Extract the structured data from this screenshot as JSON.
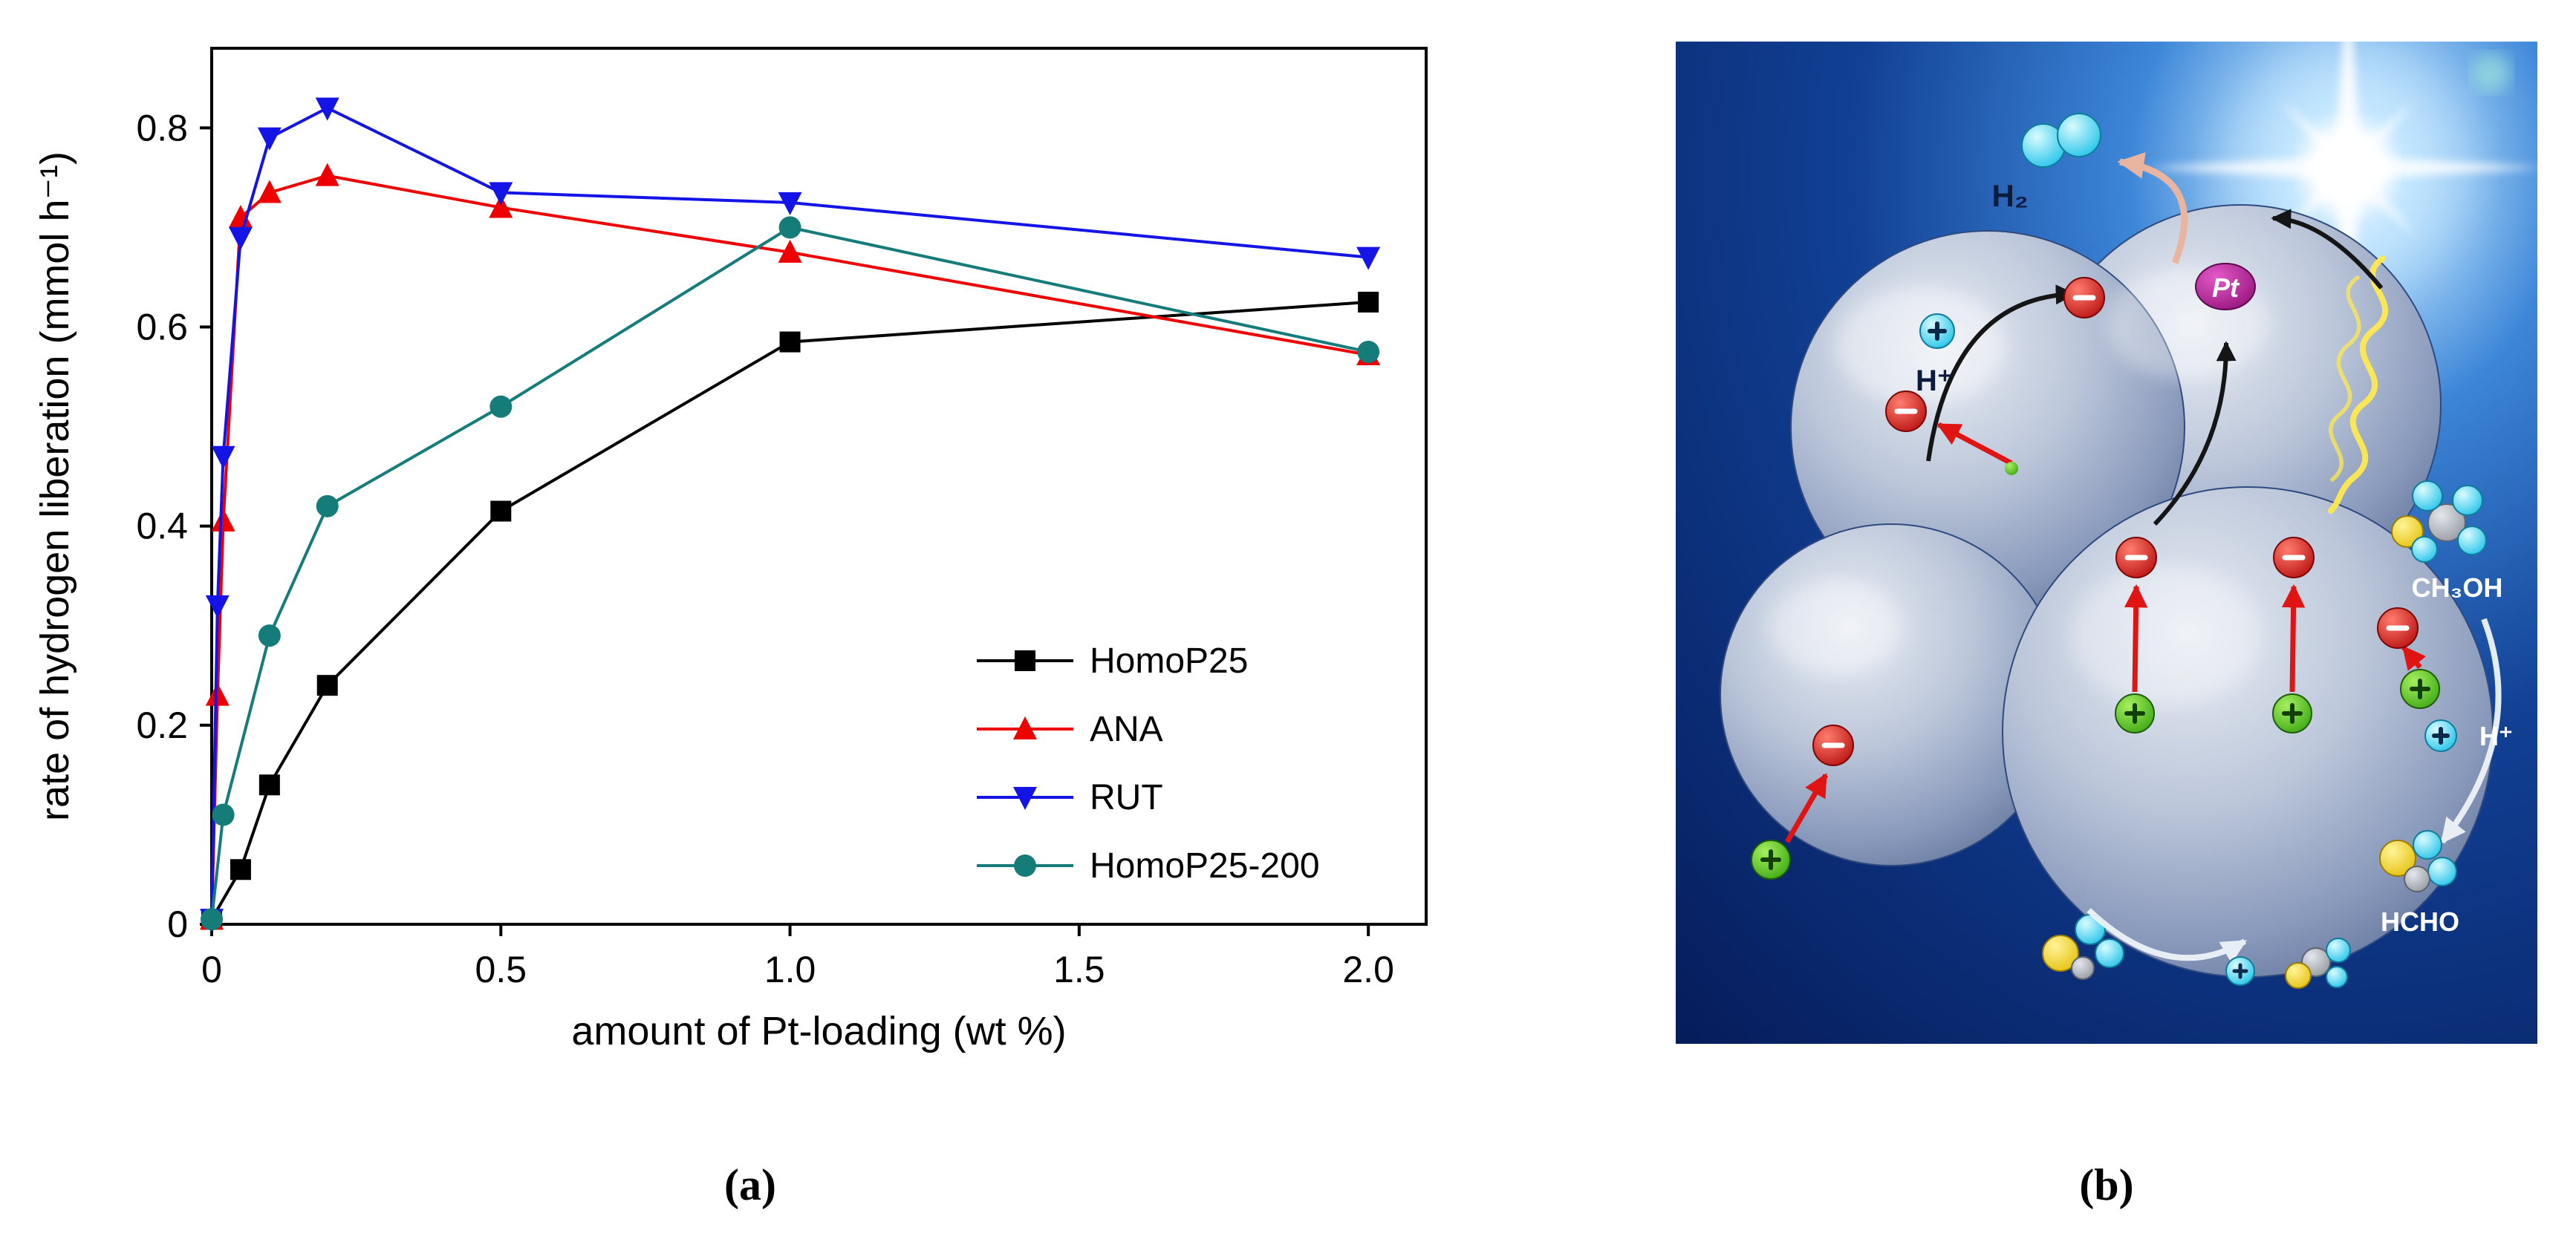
{
  "figure": {
    "panel_a_label": "(a)",
    "panel_b_label": "(b)"
  },
  "chart_data": {
    "type": "line",
    "title": "",
    "xlabel": "amount of Pt-loading (wt %)",
    "ylabel": "rate of hydrogen liberation (mmol h⁻¹)",
    "xlim": [
      0,
      2.1
    ],
    "ylim": [
      0,
      0.88
    ],
    "xticks": [
      0,
      0.5,
      1.0,
      1.5,
      2.0
    ],
    "xtick_labels": [
      "0",
      "0.5",
      "1.0",
      "1.5",
      "2.0"
    ],
    "yticks": [
      0,
      0.2,
      0.4,
      0.6,
      0.8
    ],
    "ytick_labels": [
      "0",
      "0.2",
      "0.4",
      "0.6",
      "0.8"
    ],
    "grid": false,
    "legend_position": "inside lower right",
    "series": [
      {
        "name": "HomoP25",
        "color": "#000000",
        "marker": "square",
        "x": [
          0,
          0.05,
          0.1,
          0.2,
          0.5,
          1.0,
          2.0
        ],
        "y": [
          0.005,
          0.055,
          0.14,
          0.24,
          0.415,
          0.585,
          0.625
        ]
      },
      {
        "name": "ANA",
        "color": "#ee0000",
        "marker": "triangle-up",
        "x": [
          0,
          0.01,
          0.02,
          0.05,
          0.1,
          0.2,
          0.5,
          1.0,
          2.0
        ],
        "y": [
          0.005,
          0.23,
          0.405,
          0.71,
          0.735,
          0.752,
          0.72,
          0.675,
          0.572
        ]
      },
      {
        "name": "RUT",
        "color": "#1414e6",
        "marker": "triangle-down",
        "x": [
          0,
          0.01,
          0.02,
          0.05,
          0.1,
          0.2,
          0.5,
          1.0,
          2.0
        ],
        "y": [
          0.005,
          0.32,
          0.47,
          0.69,
          0.79,
          0.82,
          0.735,
          0.725,
          0.67
        ]
      },
      {
        "name": "HomoP25-200",
        "color": "#167c7a",
        "marker": "circle",
        "x": [
          0,
          0.02,
          0.1,
          0.2,
          0.5,
          1.0,
          2.0
        ],
        "y": [
          0.005,
          0.11,
          0.29,
          0.42,
          0.52,
          0.7,
          0.575
        ]
      }
    ]
  },
  "diagram": {
    "labels": {
      "h2": "H₂",
      "h_plus_left": "H⁺",
      "pt": "Pt",
      "ch3oh": "CH₃OH",
      "h_plus_right": "H⁺",
      "hcho": "HCHO"
    },
    "colors": {
      "background": "#0d3a8f",
      "sphere": "#b7c3d8",
      "electron": "#cf1010",
      "hole": "#4bb515",
      "ion": "#2fd2f0",
      "pt_particle": "#b0189c",
      "light_ray": "#ffe94f"
    }
  }
}
